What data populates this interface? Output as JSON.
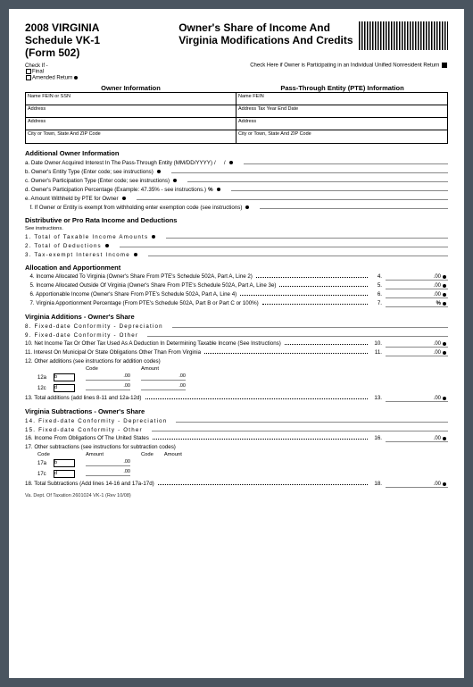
{
  "header": {
    "year": "2008 VIRGINIA",
    "schedule": "Schedule VK-1",
    "form": "(Form 502)",
    "title1": "Owner's Share of Income And",
    "title2": "Virginia Modifications And Credits"
  },
  "checks": {
    "checkif": "Check If -",
    "final": "Final",
    "amended": "Amended Return",
    "right": "Check Here if Owner is Participating in an Individual Unified Nonresident Return"
  },
  "secheads": {
    "left": "Owner Information",
    "right": "Pass-Through Entity (PTE) Information"
  },
  "owner": {
    "c1": "Name    FEIN or SSN",
    "c2": "Address",
    "c3": "Address",
    "c4": "City or Town, State And ZIP Code"
  },
  "pte": {
    "c1": "Name    FEIN",
    "c2": "Address    Tax Year End Date",
    "c3": "Address",
    "c4": "City or Town, State And ZIP Code"
  },
  "addl": {
    "title": "Additional Owner Information",
    "a": "a. Date Owner Acquired Interest In The Pass-Through Entity (MM/DD/YYYY)",
    "b": "b. Owner's Entity Type (Enter code; see instructions)",
    "c": "c. Owner's Participation Type (Enter code; see instructions)",
    "d": "d. Owner's Participation Percentage (Example: 47.35% - see instructions.)",
    "e": "e. Amount Withheld by PTE for Owner",
    "f": "f.  If Owner or Entity is exempt from withholding enter exemption code (see instructions)"
  },
  "dist": {
    "title": "Distributive or Pro Rata Income and Deductions",
    "note": "See instructions.",
    "l1": "1.  Total of Taxable Income Amounts",
    "l2": "2.  Total of Deductions",
    "l3": "3.  Tax-exempt Interest Income"
  },
  "alloc": {
    "title": "Allocation and Apportionment",
    "l4": "4. Income Allocated To Virginia (Owner's Share From PTE's Schedule 502A, Part A, Line 2)",
    "n4": "4.",
    "l5": "5. Income Allocated Outside Of Virginia (Owner's Share From PTE's Schedule 502A, Part A, Line 3e)",
    "n5": "5.",
    "l6": "6. Apportionable Income (Owner's Share From PTE's Schedule 502A, Part A, Line 4)",
    "n6": "6.",
    "l7": "7. Virginia Apportionment Percentage (From PTE's Schedule 502A, Part B or Part C or 100%)",
    "n7": "7."
  },
  "vadd": {
    "title": "Virginia Additions - Owner's Share",
    "l8": "8.  Fixed-date Conformity - Depreciation",
    "l9": "9.  Fixed-date Conformity - Other",
    "l10": "10. Net Income Tax Or Other Tax Used As A Deduction In Determining Taxable Income (See Instructions)",
    "n10": "10.",
    "l11": "11. Interest On Municipal Or State Obligations Other Than From Virginia",
    "n11": "11.",
    "l12": "12. Other additions  (see instructions for addition codes)",
    "hcode": "Code",
    "hamount": "Amount",
    "r12a": "12a",
    "r12b": "b",
    "r12c": "12c",
    "r12d": "d",
    "l13": "13. Total additions (add lines 8-11 and 12a-12d)",
    "n13": "13."
  },
  "vsub": {
    "title": "Virginia Subtractions - Owner's Share",
    "l14": "14.  Fixed-date Conformity - Depreciation",
    "l15": "15.  Fixed-date Conformity - Other",
    "l16": "16. Income From Obligations Of The United States",
    "n16": "16.",
    "l17": "17. Other subtractions (see instructions for subtraction codes)",
    "r17a": "17a",
    "r17b": "b",
    "r17c": "17c",
    "r17d": "d",
    "l18": "18. Total Subtractions (Add lines 14-16 and 17a-17d)",
    "n18": "18."
  },
  "zero": ".00",
  "pct": "%",
  "slash": "/",
  "footer": "Va. Dept. Of Taxation   2601024   VK-1      (Rev 10/08)"
}
